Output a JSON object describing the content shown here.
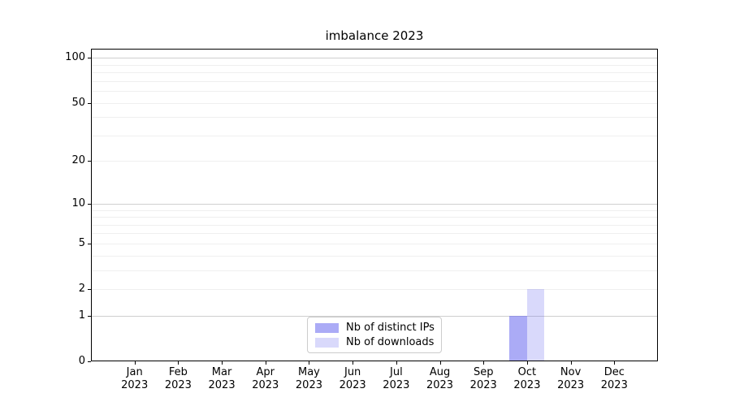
{
  "chart_data": {
    "type": "bar",
    "title": "imbalance 2023",
    "categories": [
      "Jan",
      "Feb",
      "Mar",
      "Apr",
      "May",
      "Jun",
      "Jul",
      "Aug",
      "Sep",
      "Oct",
      "Nov",
      "Dec"
    ],
    "category_year": "2023",
    "series": [
      {
        "name": "Nb of distinct IPs",
        "color": "rgba(102,102,238,0.55)",
        "values": [
          0,
          0,
          0,
          0,
          0,
          0,
          0,
          0,
          0,
          1,
          0,
          0
        ]
      },
      {
        "name": "Nb of downloads",
        "color": "rgba(102,102,238,0.25)",
        "values": [
          0,
          0,
          0,
          0,
          0,
          0,
          0,
          0,
          0,
          2,
          0,
          0
        ]
      }
    ],
    "xlabel": "",
    "ylabel": "",
    "yscale": "log1p",
    "ylim": [
      0,
      115
    ],
    "yticks": [
      0,
      1,
      2,
      5,
      10,
      20,
      50,
      100
    ],
    "major_gridlines": [
      1,
      10,
      100
    ],
    "minor_gridlines": [
      2,
      3,
      4,
      5,
      6,
      7,
      8,
      9,
      20,
      30,
      40,
      50,
      60,
      70,
      80,
      90
    ],
    "grid_major_color": "#cfcfcf",
    "grid_minor_color": "#efefef",
    "axis_color": "#000000",
    "legend_position": "lower center"
  }
}
